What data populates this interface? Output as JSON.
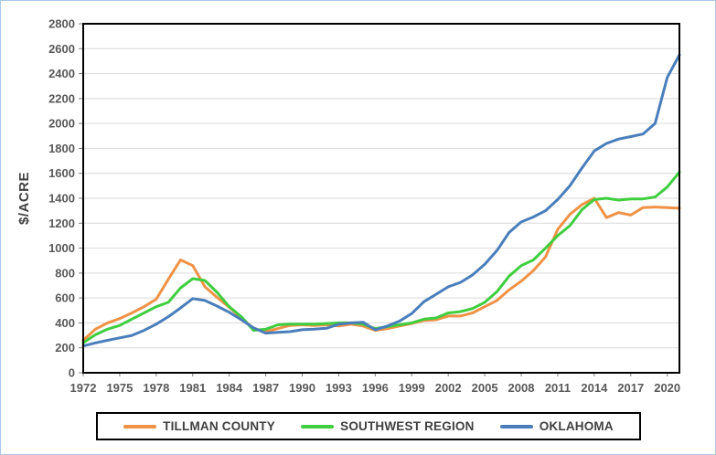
{
  "chart_data": {
    "type": "line",
    "title": "",
    "xlabel": "",
    "ylabel": "$/ACRE",
    "ylim": [
      0,
      2800
    ],
    "y_tick_step": 200,
    "x_range": [
      1972,
      2021
    ],
    "x_tick_labels": [
      "1972",
      "1975",
      "1978",
      "1981",
      "1984",
      "1987",
      "1990",
      "1993",
      "1996",
      "1999",
      "2002",
      "2005",
      "2008",
      "2011",
      "2014",
      "2017",
      "2020"
    ],
    "grid": "horizontal-only",
    "legend_position": "bottom-boxed",
    "years": [
      1972,
      1973,
      1974,
      1975,
      1976,
      1977,
      1978,
      1979,
      1980,
      1981,
      1982,
      1983,
      1984,
      1985,
      1986,
      1987,
      1988,
      1989,
      1990,
      1991,
      1992,
      1993,
      1994,
      1995,
      1996,
      1997,
      1998,
      1999,
      2000,
      2001,
      2002,
      2003,
      2004,
      2005,
      2006,
      2007,
      2008,
      2009,
      2010,
      2011,
      2012,
      2013,
      2014,
      2015,
      2016,
      2017,
      2018,
      2019,
      2020,
      2021
    ],
    "series": [
      {
        "name": "TILLMAN COUNTY",
        "color": "#F09245",
        "values": [
          260,
          350,
          400,
          435,
          480,
          530,
          590,
          750,
          905,
          860,
          690,
          605,
          525,
          440,
          355,
          330,
          355,
          380,
          385,
          380,
          385,
          375,
          390,
          375,
          340,
          355,
          375,
          395,
          420,
          425,
          455,
          455,
          480,
          530,
          580,
          665,
          735,
          820,
          930,
          1150,
          1270,
          1350,
          1400,
          1245,
          1285,
          1265,
          1325,
          1330,
          1325,
          1320
        ]
      },
      {
        "name": "SOUTHWEST REGION",
        "color": "#3FCE3F",
        "values": [
          240,
          305,
          350,
          380,
          430,
          480,
          530,
          565,
          680,
          755,
          740,
          645,
          530,
          450,
          340,
          350,
          385,
          390,
          390,
          390,
          395,
          400,
          400,
          390,
          355,
          370,
          385,
          400,
          430,
          440,
          480,
          490,
          515,
          565,
          650,
          775,
          860,
          905,
          1000,
          1100,
          1180,
          1310,
          1390,
          1400,
          1385,
          1395,
          1395,
          1410,
          1490,
          1610
        ]
      },
      {
        "name": "OKLAHOMA",
        "color": "#4A7EBB",
        "values": [
          215,
          240,
          260,
          280,
          300,
          340,
          390,
          450,
          520,
          595,
          580,
          535,
          485,
          425,
          360,
          318,
          325,
          330,
          345,
          350,
          357,
          390,
          400,
          405,
          345,
          375,
          415,
          475,
          570,
          630,
          690,
          725,
          785,
          870,
          980,
          1125,
          1210,
          1250,
          1300,
          1390,
          1500,
          1645,
          1780,
          1840,
          1875,
          1895,
          1915,
          2000,
          2370,
          2550
        ]
      }
    ],
    "colors": {
      "gridline": "#D9D9D9",
      "plot_border": "#000000",
      "tick_mark": "#808080",
      "tick_label_text": "#595959",
      "legend_text": "#3F3F3F",
      "outer_frame": "#A9C7E8",
      "background": "#FFFFFF"
    }
  }
}
